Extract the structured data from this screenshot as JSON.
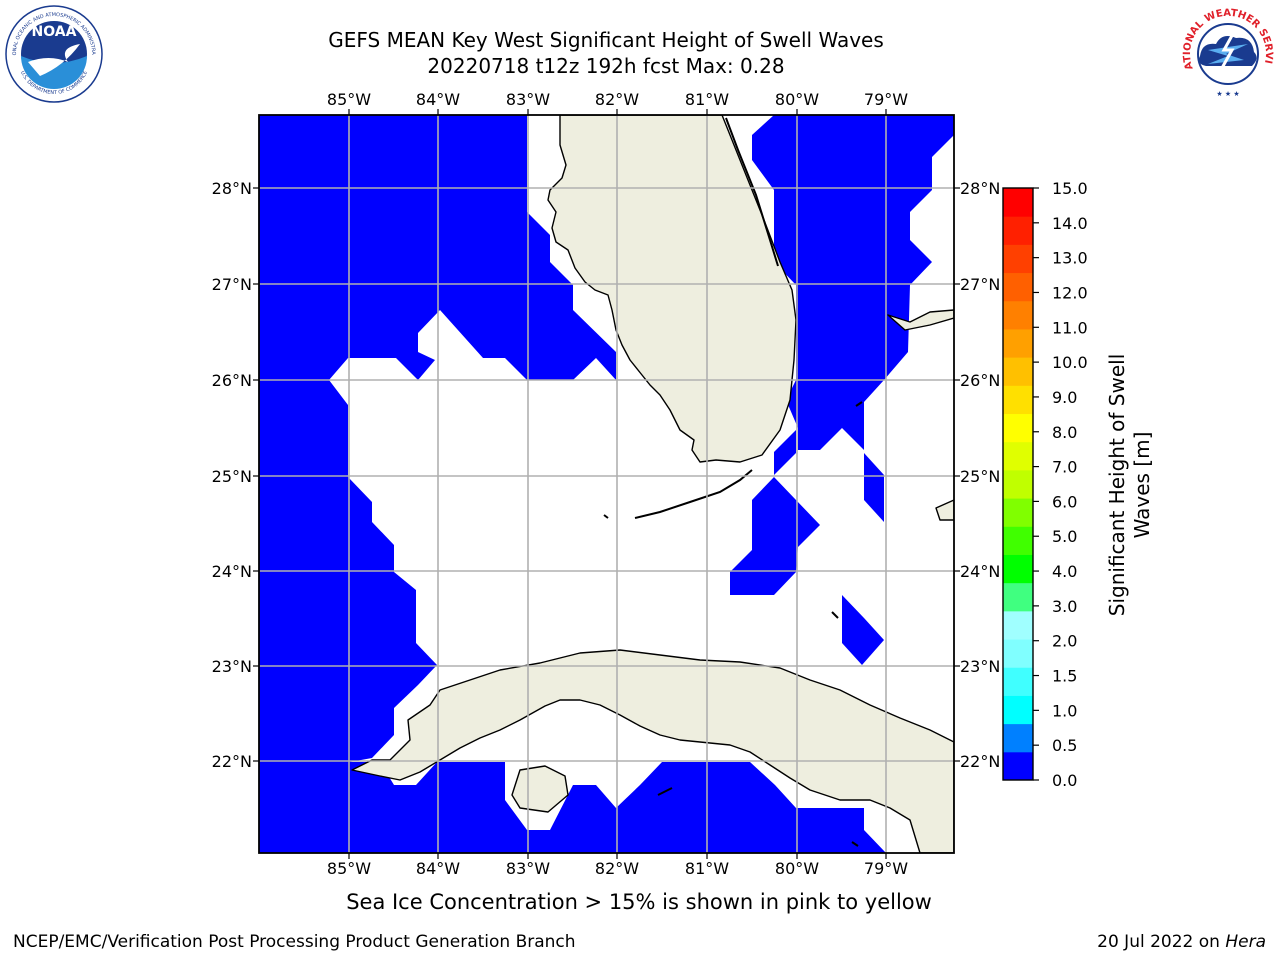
{
  "title": {
    "line1": "GEFS MEAN Key West Significant Height of Swell Waves",
    "line2": "20220718 t12z 192h fcst   Max: 0.28"
  },
  "map": {
    "lon_ticks": [
      "85°W",
      "84°W",
      "83°W",
      "82°W",
      "81°W",
      "80°W",
      "79°W"
    ],
    "lat_ticks": [
      "28°N",
      "27°N",
      "26°N",
      "25°N",
      "24°N",
      "23°N",
      "22°N"
    ],
    "colors": {
      "ocean": "#0000ff",
      "land": "#eeeedf",
      "grid": "#b0b0b0",
      "coast": "#000000"
    }
  },
  "colorbar": {
    "label_line1": "Significant Height of Swell",
    "label_line2": "Waves [m]",
    "ticks": [
      "0.0",
      "0.5",
      "1.0",
      "1.5",
      "2.0",
      "2.5",
      "3.0",
      "3.5",
      "4.0",
      "4.5",
      "5.0",
      "5.5",
      "6.0",
      "6.5",
      "7.0",
      "7.5",
      "8.0",
      "8.5",
      "9.0",
      "9.5",
      "10.0",
      "10.5",
      "11.0",
      "11.5",
      "12.0",
      "12.5",
      "13.0",
      "13.5",
      "14.0",
      "14.5",
      "15.0"
    ],
    "tick_labels": [
      "0.0",
      "0.5",
      "1.0",
      "1.5",
      "2.0",
      "3.0",
      "4.0",
      "5.0",
      "6.0",
      "7.0",
      "8.0",
      "9.0",
      "10.0",
      "11.0",
      "12.0",
      "13.0",
      "14.0",
      "15.0"
    ],
    "colors": [
      "#0000ff",
      "#0080ff",
      "#00ffff",
      "#40ffff",
      "#80ffff",
      "#a0ffff",
      "#40ff80",
      "#00ff00",
      "#40ff00",
      "#80ff00",
      "#c0ff00",
      "#e0ff00",
      "#ffff00",
      "#ffe000",
      "#ffc000",
      "#ffa000",
      "#ff8000",
      "#ff6000",
      "#ff4000",
      "#ff2000",
      "#ff0000"
    ]
  },
  "note": "Sea Ice Concentration > 15% is shown in pink to yellow",
  "footer": {
    "left": "NCEP/EMC/Verification Post Processing Product Generation Branch",
    "right_prefix": "20 Jul 2022 on ",
    "right_host": "Hera"
  },
  "logos": {
    "left_text": "NOAA",
    "left_ring_top": "NATIONAL OCEANIC AND ATMOSPHERIC ADMINISTRATION",
    "left_ring_bottom": "U.S. DEPARTMENT OF COMMERCE",
    "right_ring": "NATIONAL WEATHER SERVICE"
  }
}
